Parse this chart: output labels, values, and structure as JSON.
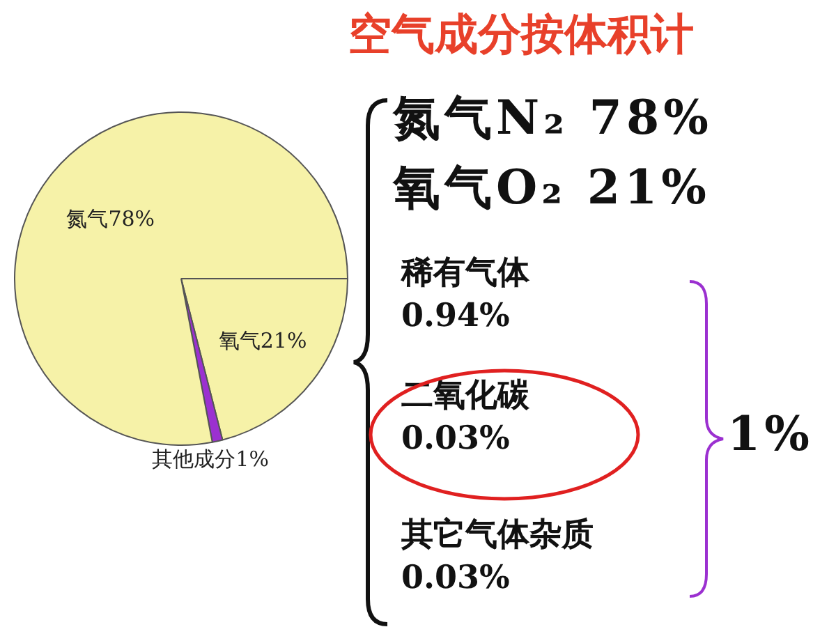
{
  "chart_data": {
    "type": "pie",
    "title": "空气成分按体积计",
    "categories": [
      "氧气",
      "其他成分",
      "氮气"
    ],
    "values": [
      21,
      1,
      78
    ],
    "value_labels": [
      "21%",
      "1%",
      "78%"
    ],
    "colors": [
      "#f6f2a8",
      "#9b30d0",
      "#f6f2a8"
    ],
    "legend": false,
    "annotations": [
      "氮气N₂ 78%",
      "氧气O₂ 21%",
      "稀有气体 0.94%",
      "二氧化碳 0.03%",
      "其它气体杂质 0.03%",
      "1%"
    ]
  }
}
